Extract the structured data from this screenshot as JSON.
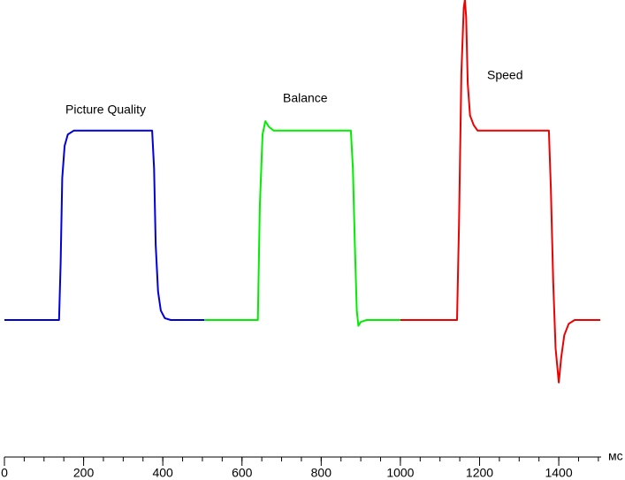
{
  "chart_data": {
    "type": "line",
    "xlabel": "мс",
    "xlim": [
      0,
      1507
    ],
    "xticks": [
      0,
      200,
      400,
      600,
      800,
      1000,
      1200,
      1400
    ],
    "xminor_step": 50,
    "ylim": [
      -70,
      169
    ],
    "series": [
      {
        "name": "Picture Quality",
        "color": "#0000dd",
        "x": [
          0,
          138,
          142,
          146,
          152,
          160,
          175,
          373,
          378,
          382,
          388,
          395,
          405,
          420,
          505
        ],
        "values": [
          0,
          0,
          30,
          75,
          92,
          98,
          100,
          100,
          80,
          40,
          15,
          5,
          1,
          0,
          0
        ]
      },
      {
        "name": "Balance",
        "color": "#00ee00",
        "x": [
          505,
          640,
          645,
          652,
          659,
          668,
          680,
          875,
          880,
          885,
          890,
          894,
          900,
          915,
          1000
        ],
        "values": [
          0,
          0,
          60,
          98,
          105,
          102,
          100,
          100,
          80,
          40,
          5,
          -3,
          -1,
          0,
          0
        ]
      },
      {
        "name": "Speed",
        "color": "#ee0000",
        "x": [
          1000,
          1143,
          1148,
          1154,
          1160,
          1163,
          1166,
          1170,
          1176,
          1185,
          1195,
          1375,
          1380,
          1386,
          1392,
          1400,
          1406,
          1414,
          1425,
          1440,
          1505
        ],
        "values": [
          0,
          0,
          50,
          130,
          165,
          169,
          160,
          125,
          108,
          103,
          100,
          100,
          70,
          20,
          -15,
          -33,
          -20,
          -8,
          -2,
          0,
          0
        ]
      }
    ]
  }
}
